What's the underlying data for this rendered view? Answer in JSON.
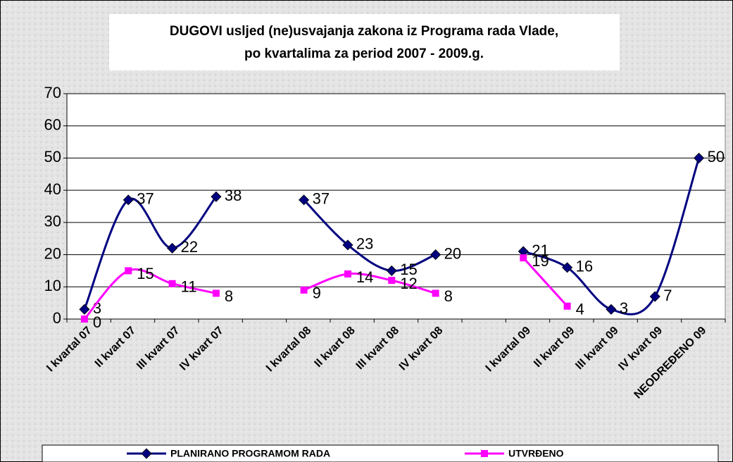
{
  "chart_data": {
    "type": "line",
    "title": [
      "DUGOVI usljed (ne)usvajanja zakona iz Programa rada Vlade,",
      "po kvartalima za period 2007 - 2009.g."
    ],
    "categories": [
      "I kvartal 07",
      "II kvart 07",
      "III kvart 07",
      "IV kvart 07",
      null,
      "I kvartal 08",
      "II kvart 08",
      "III kvart 08",
      "IV kvart 08",
      null,
      "I kvartal 09",
      "II kvart 09",
      "III kvart 09",
      "IV kvart 09",
      "NEODREĐENO 09"
    ],
    "series": [
      {
        "name": "PLANIRANO PROGRAMOM RADA",
        "color": "#000080",
        "marker": "diamond",
        "values": [
          3,
          37,
          22,
          38,
          null,
          37,
          23,
          15,
          20,
          null,
          21,
          16,
          3,
          7,
          50
        ]
      },
      {
        "name": "UTVRĐENO",
        "color": "#ff00ff",
        "marker": "square",
        "values": [
          0,
          15,
          11,
          8,
          null,
          9,
          14,
          12,
          8,
          null,
          19,
          4,
          null,
          null,
          null
        ]
      }
    ],
    "ylim": [
      0,
      70
    ],
    "yticks": [
      0,
      10,
      20,
      30,
      40,
      50,
      60,
      70
    ],
    "grid": true,
    "smooth": true,
    "legend": "bottom"
  }
}
